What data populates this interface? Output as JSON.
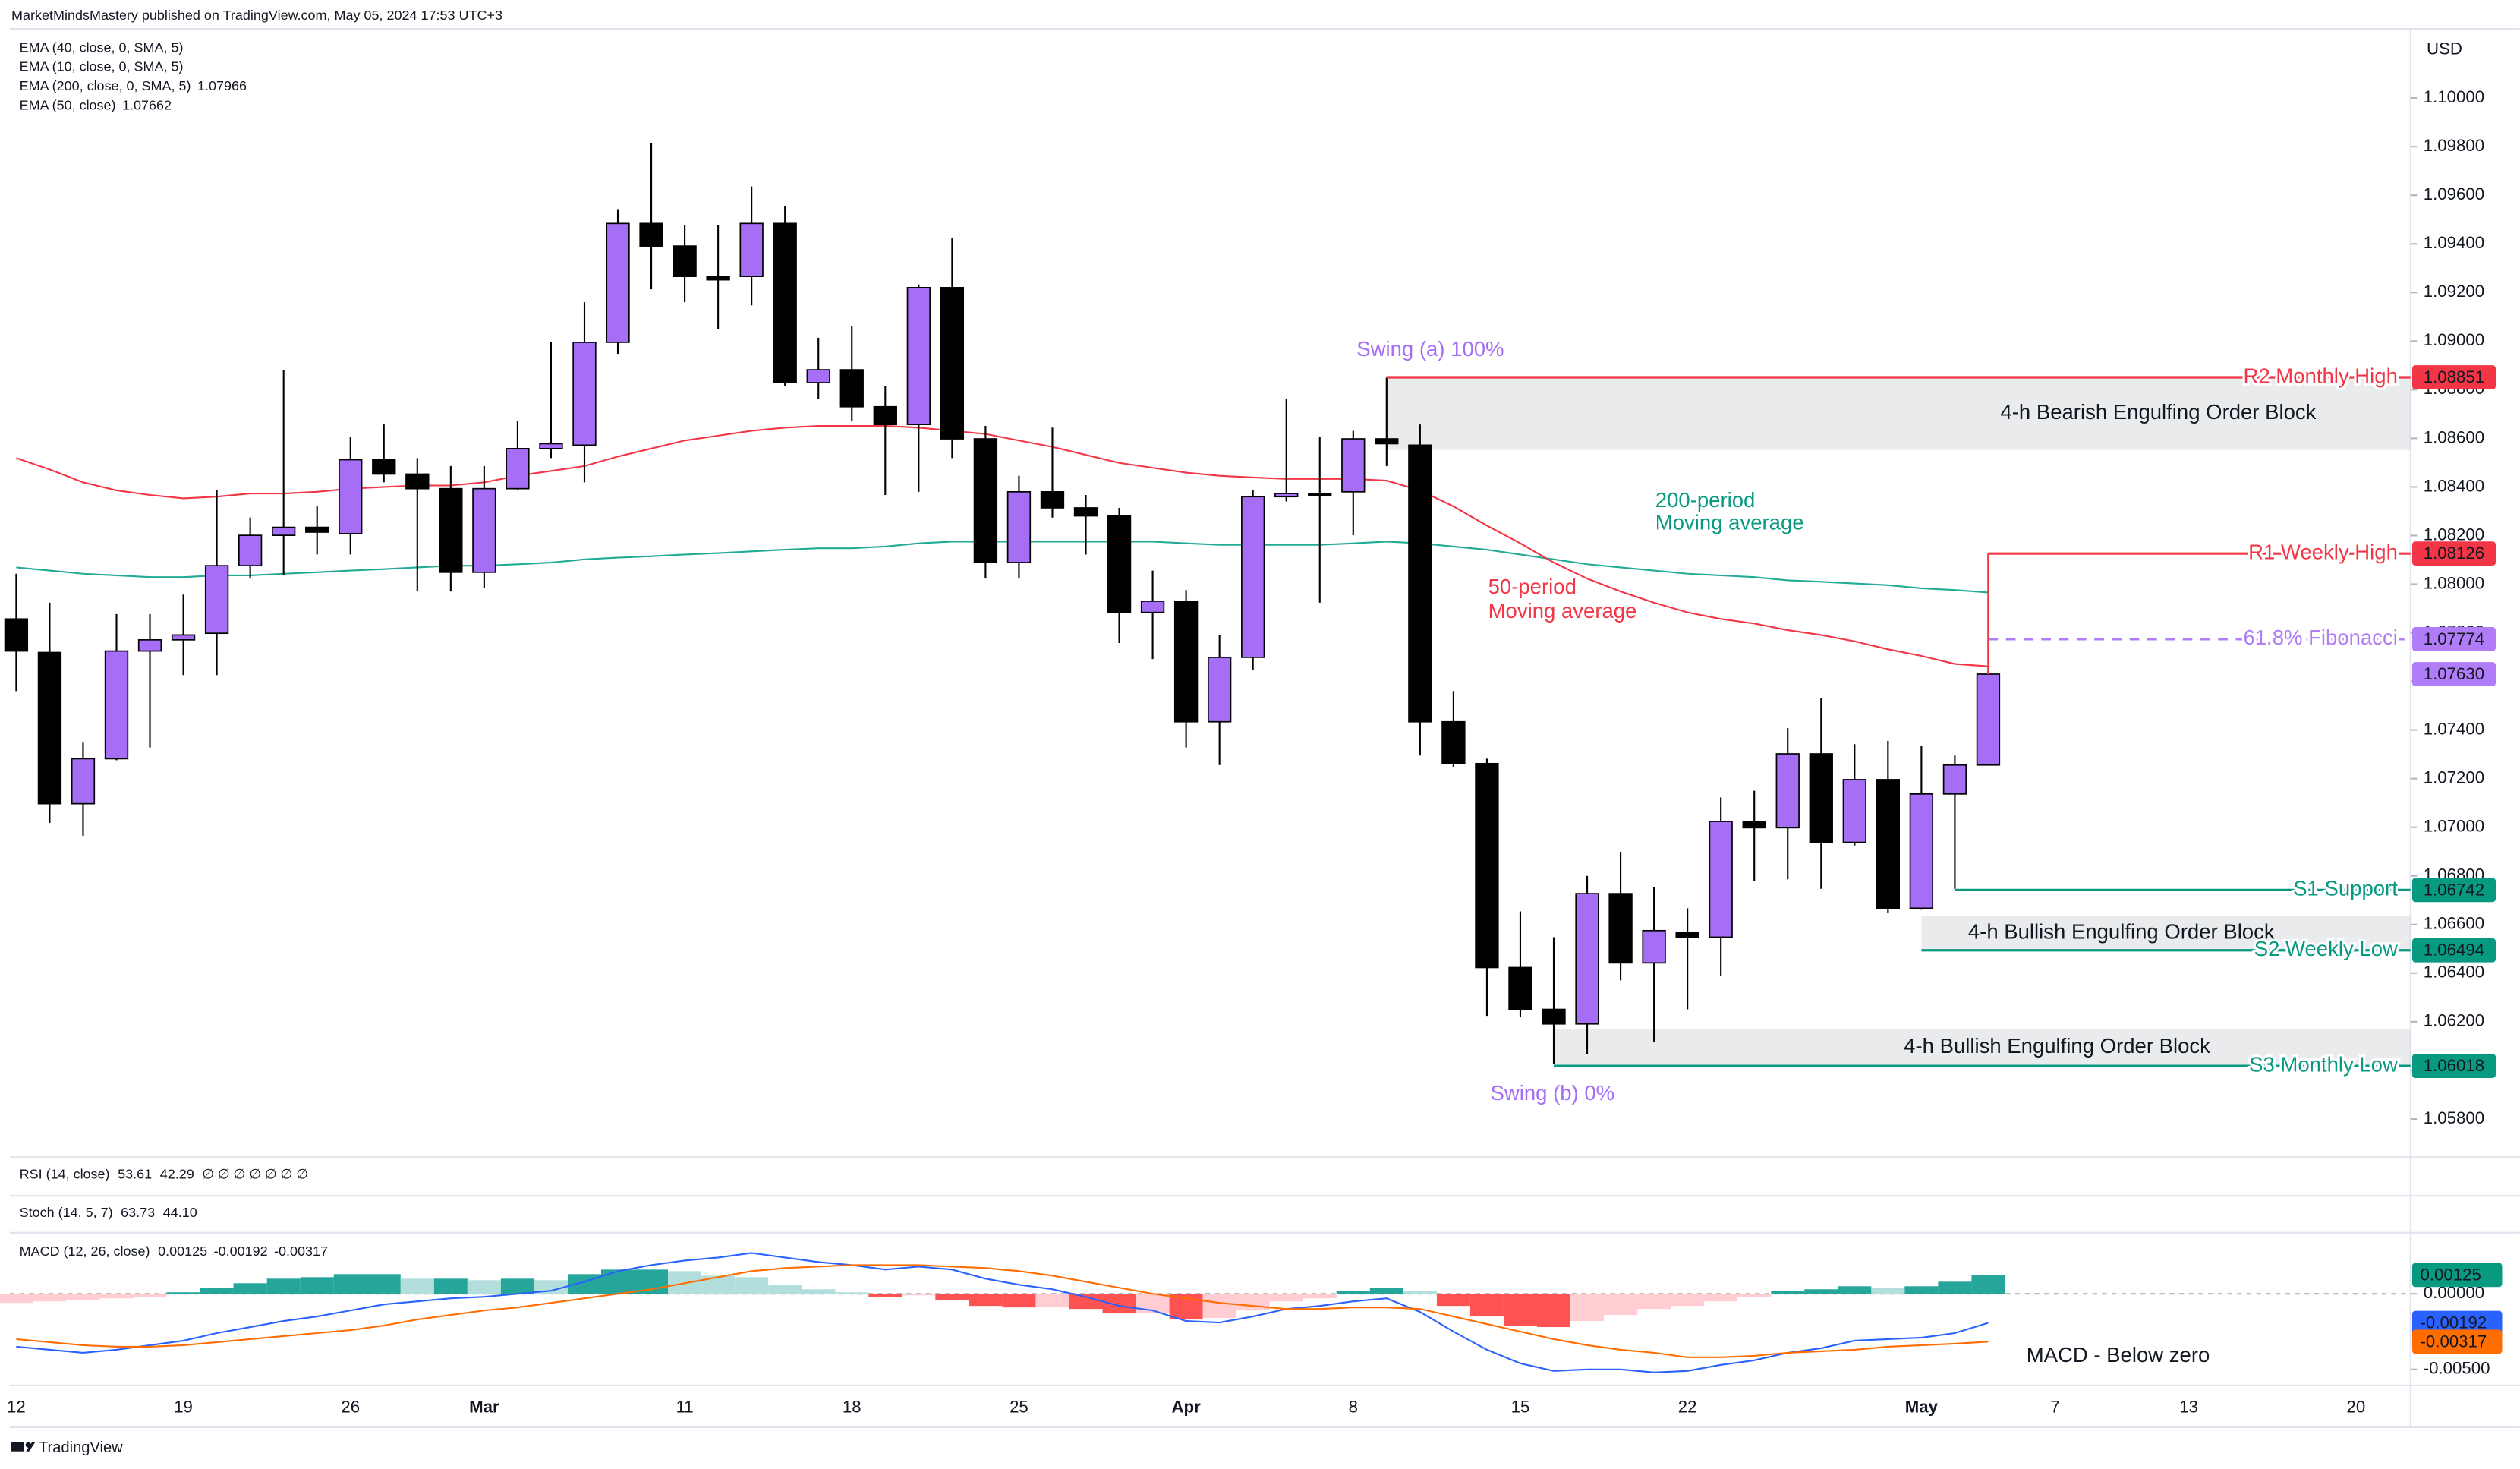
{
  "header": {
    "publisher": "MarketMindsMastery published on TradingView.com, May 05, 2024 17:53 UTC+3",
    "footer": "TradingView"
  },
  "chart_data": {
    "type": "candlestick",
    "currency": "USD",
    "grid": false,
    "up_color": "#a56ef5",
    "down_color": "#000000",
    "categories": [
      "12",
      null,
      null,
      null,
      null,
      "19",
      null,
      null,
      null,
      null,
      "26",
      null,
      null,
      null,
      "Mar",
      null,
      null,
      null,
      null,
      null,
      "11",
      null,
      null,
      null,
      null,
      "18",
      null,
      null,
      null,
      null,
      "25",
      null,
      null,
      null,
      null,
      "Apr",
      null,
      null,
      null,
      null,
      "8",
      null,
      null,
      null,
      null,
      "15",
      null,
      null,
      null,
      null,
      "22",
      null,
      null,
      null,
      null,
      null,
      null,
      "May",
      null,
      null,
      null,
      "7",
      null,
      null,
      null,
      "13",
      null,
      null,
      null,
      null,
      "20"
    ],
    "open": [
      1.07857,
      1.07719,
      1.07097,
      1.07282,
      1.07725,
      1.07771,
      1.07798,
      1.08076,
      1.08201,
      1.08234,
      1.08208,
      1.08512,
      1.08453,
      1.08393,
      1.08049,
      1.08393,
      1.08558,
      1.08572,
      1.08995,
      1.09484,
      1.09391,
      1.09266,
      1.09266,
      1.09484,
      1.08829,
      1.08882,
      1.0873,
      1.08657,
      1.0922,
      1.08598,
      1.08089,
      1.0838,
      1.08314,
      1.08281,
      1.07884,
      1.0793,
      1.07434,
      1.07699,
      1.0836,
      1.08373,
      1.0838,
      1.08598,
      1.08572,
      1.07434,
      1.07262,
      1.06423,
      1.06251,
      1.06191,
      1.06727,
      1.06442,
      1.06568,
      1.06548,
      1.07024,
      1.06998,
      1.07302,
      1.06938,
      1.07196,
      1.06667,
      1.07137,
      1.07256,
      null,
      null,
      null,
      null,
      null,
      null,
      null,
      null,
      null,
      null,
      null
    ],
    "high": [
      1.08043,
      1.07924,
      1.07348,
      1.07877,
      1.07877,
      1.07957,
      1.08386,
      1.08274,
      1.08882,
      1.0832,
      1.08605,
      1.08657,
      1.08519,
      1.08486,
      1.08486,
      1.08671,
      1.08995,
      1.0916,
      1.09543,
      1.09815,
      1.09477,
      1.09477,
      1.09636,
      1.09557,
      1.09014,
      1.09061,
      1.08816,
      1.09233,
      1.09424,
      1.08651,
      1.08446,
      1.08644,
      1.08367,
      1.08314,
      1.08056,
      1.07976,
      1.07791,
      1.08386,
      1.08763,
      1.08605,
      1.08631,
      1.08849,
      1.08657,
      1.0756,
      1.07282,
      1.06654,
      1.06548,
      1.068,
      1.06899,
      1.06753,
      1.06667,
      1.07123,
      1.0715,
      1.07408,
      1.07533,
      1.07342,
      1.07355,
      1.07335,
      1.07295,
      1.07652,
      null,
      null,
      null,
      null,
      null,
      null,
      null,
      null,
      null,
      null,
      null
    ],
    "low": [
      1.0756,
      1.07018,
      1.06965,
      1.07276,
      1.07328,
      1.07626,
      1.07626,
      1.08023,
      1.08036,
      1.08122,
      1.08122,
      1.08419,
      1.0797,
      1.0797,
      1.07983,
      1.08386,
      1.08519,
      1.08419,
      1.08948,
      1.09213,
      1.0916,
      1.09048,
      1.09147,
      1.08816,
      1.08763,
      1.08671,
      1.08367,
      1.0838,
      1.08519,
      1.08023,
      1.08023,
      1.08274,
      1.08122,
      1.07758,
      1.07692,
      1.07328,
      1.07256,
      1.07646,
      1.0834,
      1.07924,
      1.08201,
      1.08486,
      1.07295,
      1.07249,
      1.06224,
      1.06218,
      1.06026,
      1.06066,
      1.0637,
      1.06118,
      1.06251,
      1.0639,
      1.0678,
      1.06786,
      1.06747,
      1.06925,
      1.06647,
      1.06661,
      1.06747,
      1.07256,
      null,
      null,
      null,
      null,
      null,
      null,
      null,
      null,
      null,
      null,
      null
    ],
    "close": [
      1.07725,
      1.07097,
      1.07282,
      1.07725,
      1.07771,
      1.07791,
      1.08076,
      1.08201,
      1.08234,
      1.08214,
      1.08512,
      1.08453,
      1.08393,
      1.08049,
      1.08393,
      1.08558,
      1.08578,
      1.08995,
      1.09484,
      1.09391,
      1.09266,
      1.09252,
      1.09484,
      1.08829,
      1.08882,
      1.0873,
      1.08657,
      1.0922,
      1.08598,
      1.08089,
      1.0838,
      1.08314,
      1.08281,
      1.07884,
      1.0793,
      1.07434,
      1.07699,
      1.0836,
      1.08373,
      1.08367,
      1.08598,
      1.08578,
      1.07434,
      1.07262,
      1.06423,
      1.06251,
      1.06191,
      1.06727,
      1.06442,
      1.06575,
      1.06548,
      1.07024,
      1.06998,
      1.07302,
      1.06938,
      1.07196,
      1.06667,
      1.07137,
      1.07256,
      1.0763,
      null,
      null,
      null,
      null,
      null,
      null,
      null,
      null,
      null,
      null,
      null
    ],
    "last_price": {
      "value": 1.0763,
      "label": "1.07630",
      "color": "#b07cf7"
    },
    "legend_only": [
      "EMA (40, close, 0, SMA, 5)",
      "EMA (10, close, 0, SMA, 5)"
    ],
    "series": [
      {
        "name": "EMA (200, close, 0, SMA, 5)",
        "color": "#22ab94",
        "values": [
          1.08069,
          1.08056,
          1.08043,
          1.08036,
          1.08029,
          1.08029,
          1.08036,
          1.08036,
          1.08043,
          1.08049,
          1.08056,
          1.08062,
          1.08069,
          1.08076,
          1.08076,
          1.08082,
          1.08089,
          1.08102,
          1.08109,
          1.08115,
          1.08122,
          1.08128,
          1.08135,
          1.08142,
          1.08148,
          1.08148,
          1.08155,
          1.08168,
          1.08175,
          1.08175,
          1.08175,
          1.08175,
          1.08175,
          1.08175,
          1.08175,
          1.08168,
          1.08162,
          1.08162,
          1.08162,
          1.08162,
          1.08168,
          1.08175,
          1.08168,
          1.08155,
          1.08142,
          1.08122,
          1.08102,
          1.08082,
          1.08069,
          1.08056,
          1.08043,
          1.08036,
          1.08029,
          1.08016,
          1.0801,
          1.08003,
          1.07996,
          1.07983,
          1.07976,
          1.07966,
          null,
          null,
          null,
          null,
          null,
          null,
          null,
          null,
          null,
          null,
          null
        ]
      },
      {
        "name": "EMA (50, close)",
        "color": "#f23645",
        "values": [
          1.08519,
          1.08472,
          1.08419,
          1.08386,
          1.08367,
          1.08353,
          1.0836,
          1.08373,
          1.08373,
          1.0838,
          1.08393,
          1.084,
          1.08406,
          1.08406,
          1.08419,
          1.08446,
          1.08466,
          1.08486,
          1.08525,
          1.08558,
          1.08591,
          1.08611,
          1.08631,
          1.08644,
          1.08651,
          1.08651,
          1.08651,
          1.08644,
          1.08631,
          1.08618,
          1.08591,
          1.08565,
          1.08532,
          1.08499,
          1.08479,
          1.08459,
          1.08446,
          1.08439,
          1.08433,
          1.08433,
          1.08433,
          1.08426,
          1.08386,
          1.0832,
          1.08241,
          1.08168,
          1.08089,
          1.08023,
          1.0797,
          1.07924,
          1.07884,
          1.07857,
          1.07838,
          1.07811,
          1.07791,
          1.07765,
          1.07732,
          1.07705,
          1.07672,
          1.07662,
          null,
          null,
          null,
          null,
          null,
          null,
          null,
          null,
          null,
          null,
          null
        ]
      }
    ],
    "ylim": [
      1.05656,
      1.10271
    ],
    "yticks": [
      {
        "value": 1.058,
        "label": "1.05800"
      },
      {
        "value": 1.06,
        "label": "1.06000"
      },
      {
        "value": 1.062,
        "label": "1.06200"
      },
      {
        "value": 1.064,
        "label": "1.06400"
      },
      {
        "value": 1.066,
        "label": "1.06600"
      },
      {
        "value": 1.068,
        "label": "1.06800"
      },
      {
        "value": 1.07,
        "label": "1.07000"
      },
      {
        "value": 1.072,
        "label": "1.07200"
      },
      {
        "value": 1.074,
        "label": "1.07400"
      },
      {
        "value": 1.076,
        "label": "1.07600"
      },
      {
        "value": 1.078,
        "label": "1.07800"
      },
      {
        "value": 1.08,
        "label": "1.08000"
      },
      {
        "value": 1.082,
        "label": "1.08200"
      },
      {
        "value": 1.084,
        "label": "1.08400"
      },
      {
        "value": 1.086,
        "label": "1.08600"
      },
      {
        "value": 1.088,
        "label": "1.08800"
      },
      {
        "value": 1.09,
        "label": "1.09000"
      },
      {
        "value": 1.092,
        "label": "1.09200"
      },
      {
        "value": 1.094,
        "label": "1.09400"
      },
      {
        "value": 1.096,
        "label": "1.09600"
      },
      {
        "value": 1.098,
        "label": "1.09800"
      },
      {
        "value": 1.1,
        "label": "1.10000"
      }
    ],
    "levels": [
      {
        "name": "R2 Monthly High",
        "value": 1.08851,
        "color": "#f23645",
        "style": "solid"
      },
      {
        "name": "R1 Weekly High",
        "value": 1.08126,
        "color": "#f23645",
        "style": "solid"
      },
      {
        "name": "61.8% Fibonacci",
        "value": 1.07774,
        "color": "#b07cf7",
        "style": "dashed"
      },
      {
        "name": "S1 Support",
        "value": 1.06742,
        "color": "#089981",
        "style": "solid"
      },
      {
        "name": "S2 Weekly Low",
        "value": 1.06494,
        "color": "#089981",
        "style": "solid"
      },
      {
        "name": "S3 Monthly Low",
        "value": 1.06018,
        "color": "#089981",
        "style": "solid"
      }
    ],
    "zones": [
      {
        "label": "4-h Bearish Engulfing Order Block",
        "top": 1.08851,
        "bottom": 1.08552
      },
      {
        "label": "4-h Bullish Engulfing Order Block",
        "top": 1.06634,
        "bottom": 1.06494
      },
      {
        "label": "4-h Bullish Engulfing Order Block",
        "top": 1.06171,
        "bottom": 1.06018
      }
    ],
    "annotations": [
      {
        "text": "Swing (a) 100%",
        "color": "#a56ef5"
      },
      {
        "text": "Swing (b) 0%",
        "color": "#a56ef5"
      },
      {
        "text": "200-period",
        "color": "#089981"
      },
      {
        "text": "Moving average",
        "color": "#089981"
      },
      {
        "text": "50-period",
        "color": "#f23645"
      },
      {
        "text": "Moving average",
        "color": "#f23645"
      }
    ],
    "rsi": {
      "title": "RSI (14, close)",
      "values": [
        "53.61",
        "42.29",
        "∅ ∅ ∅ ∅ ∅ ∅ ∅"
      ]
    },
    "stoch": {
      "title": "Stoch (14, 5, 7)",
      "values": [
        "63.73",
        "44.10"
      ]
    },
    "macd": {
      "title": "MACD (12, 26, close)",
      "note": "MACD - Below zero",
      "ylim": [
        -0.00606,
        0.00372
      ],
      "yticks": [
        {
          "value": 0,
          "label": "0.00000"
        },
        {
          "value": -0.005,
          "label": "-0.00500"
        }
      ],
      "histogram": {
        "colors": {
          "rising_positive": "#26a69a",
          "falling_positive": "#b2dfdb",
          "falling_negative": "#ff5252",
          "rising_negative": "#ffcdd2"
        },
        "values": [
          -0.0006,
          -0.0005,
          -0.0004,
          -0.0003,
          -0.0002,
          0.0001,
          0.0004,
          0.0007,
          0.001,
          0.0011,
          0.0013,
          0.0013,
          0.001,
          0.001,
          0.0009,
          0.001,
          0.0009,
          0.0013,
          0.0016,
          0.0016,
          0.0015,
          0.0012,
          0.0011,
          0.0006,
          0.0003,
          0.0001,
          -0.0002,
          -0.0001,
          -0.0004,
          -0.0008,
          -0.0009,
          -0.0009,
          -0.001,
          -0.0013,
          -0.0013,
          -0.0017,
          -0.0016,
          -0.0011,
          -0.0005,
          -0.0003,
          0.0002,
          0.0004,
          0.0002,
          -0.0008,
          -0.0015,
          -0.0021,
          -0.0022,
          -0.0018,
          -0.0014,
          -0.001,
          -0.0008,
          -0.0005,
          -0.0002,
          0.0002,
          0.0003,
          0.0005,
          0.0004,
          0.0005,
          0.0008,
          0.00125,
          null,
          null,
          null,
          null,
          null,
          null,
          null,
          null,
          null,
          null,
          null
        ]
      },
      "macd_line": {
        "color": "#2962ff",
        "values": [
          -0.0035,
          -0.0037,
          -0.0039,
          -0.0037,
          -0.0034,
          -0.0031,
          -0.0026,
          -0.0022,
          -0.0018,
          -0.0015,
          -0.0011,
          -0.0007,
          -0.0005,
          -0.0003,
          -0.0002,
          0,
          0.0002,
          0.0008,
          0.0015,
          0.0019,
          0.0022,
          0.0024,
          0.0027,
          0.0024,
          0.0021,
          0.0019,
          0.0016,
          0.0018,
          0.0016,
          0.001,
          0.0006,
          0.0003,
          -0.0002,
          -0.0008,
          -0.0011,
          -0.0018,
          -0.0019,
          -0.0015,
          -0.001,
          -0.0008,
          -0.0005,
          -0.0003,
          -0.0012,
          -0.0025,
          -0.0037,
          -0.0046,
          -0.0051,
          -0.005,
          -0.005,
          -0.0052,
          -0.0051,
          -0.0047,
          -0.0044,
          -0.0039,
          -0.0036,
          -0.0031,
          -0.003,
          -0.0029,
          -0.0026,
          -0.00192,
          null,
          null,
          null,
          null,
          null,
          null,
          null,
          null,
          null,
          null,
          null
        ]
      },
      "signal_line": {
        "color": "#ff6d00",
        "values": [
          -0.003,
          -0.0032,
          -0.0034,
          -0.0035,
          -0.0035,
          -0.0034,
          -0.0032,
          -0.003,
          -0.0028,
          -0.0026,
          -0.0024,
          -0.0021,
          -0.0017,
          -0.0014,
          -0.0011,
          -0.0009,
          -0.0006,
          -0.0003,
          0,
          0.0003,
          0.0007,
          0.0011,
          0.0015,
          0.0017,
          0.0018,
          0.0019,
          0.0019,
          0.0019,
          0.0018,
          0.0017,
          0.0015,
          0.0012,
          0.0008,
          0.0004,
          0,
          -0.0003,
          -0.0006,
          -0.0008,
          -0.001,
          -0.001,
          -0.0009,
          -0.0009,
          -0.001,
          -0.0015,
          -0.002,
          -0.0025,
          -0.003,
          -0.0034,
          -0.0037,
          -0.0039,
          -0.0042,
          -0.0042,
          -0.0041,
          -0.0039,
          -0.0038,
          -0.0037,
          -0.0035,
          -0.0034,
          -0.0033,
          -0.00317,
          null,
          null,
          null,
          null,
          null,
          null,
          null,
          null,
          null,
          null,
          null
        ]
      }
    }
  }
}
